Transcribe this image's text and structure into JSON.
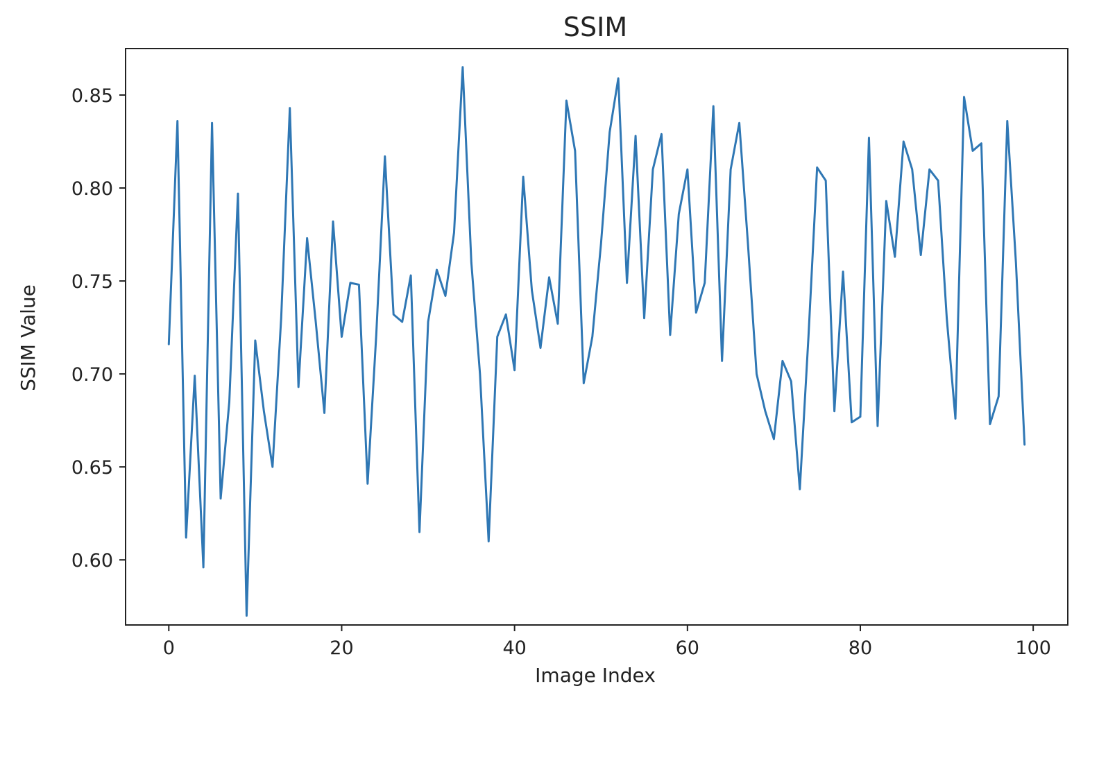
{
  "chart_data": {
    "type": "line",
    "title": "SSIM",
    "xlabel": "Image Index",
    "ylabel": "SSIM Value",
    "xlim": [
      -5,
      104
    ],
    "ylim": [
      0.565,
      0.875
    ],
    "x_ticks": [
      0,
      20,
      40,
      60,
      80,
      100
    ],
    "y_ticks": [
      0.6,
      0.65,
      0.7,
      0.75,
      0.8,
      0.85
    ],
    "x_tick_labels": [
      "0",
      "20",
      "40",
      "60",
      "80",
      "100"
    ],
    "y_tick_labels": [
      "0.60",
      "0.65",
      "0.70",
      "0.75",
      "0.80",
      "0.85"
    ],
    "grid": false,
    "color": "#2f77b4",
    "series": [
      {
        "x": [
          0,
          1,
          2,
          3,
          4,
          5,
          6,
          7,
          8,
          9,
          10,
          11,
          12,
          13,
          14,
          15,
          16,
          17,
          18,
          19,
          20,
          21,
          22,
          23,
          24,
          25,
          26,
          27,
          28,
          29,
          30,
          31,
          32,
          33,
          34,
          35,
          36,
          37,
          38,
          39,
          40,
          41,
          42,
          43,
          44,
          45,
          46,
          47,
          48,
          49,
          50,
          51,
          52,
          53,
          54,
          55,
          56,
          57,
          58,
          59,
          60,
          61,
          62,
          63,
          64,
          65,
          66,
          67,
          68,
          69,
          70,
          71,
          72,
          73,
          74,
          75,
          76,
          77,
          78,
          79,
          80,
          81,
          82,
          83,
          84,
          85,
          86,
          87,
          88,
          89,
          90,
          91,
          92,
          93,
          94,
          95,
          96,
          97,
          98,
          99
        ],
        "values": [
          0.716,
          0.836,
          0.612,
          0.699,
          0.596,
          0.835,
          0.633,
          0.685,
          0.797,
          0.57,
          0.718,
          0.68,
          0.65,
          0.73,
          0.843,
          0.693,
          0.773,
          0.728,
          0.679,
          0.782,
          0.72,
          0.749,
          0.748,
          0.641,
          0.721,
          0.817,
          0.732,
          0.728,
          0.753,
          0.615,
          0.728,
          0.756,
          0.742,
          0.776,
          0.865,
          0.76,
          0.7,
          0.61,
          0.72,
          0.732,
          0.702,
          0.806,
          0.745,
          0.714,
          0.752,
          0.727,
          0.847,
          0.82,
          0.695,
          0.72,
          0.77,
          0.83,
          0.859,
          0.749,
          0.828,
          0.73,
          0.81,
          0.829,
          0.721,
          0.786,
          0.81,
          0.733,
          0.749,
          0.844,
          0.707,
          0.81,
          0.835,
          0.77,
          0.7,
          0.68,
          0.665,
          0.707,
          0.696,
          0.638,
          0.72,
          0.811,
          0.804,
          0.68,
          0.755,
          0.674,
          0.677,
          0.827,
          0.672,
          0.793,
          0.763,
          0.825,
          0.81,
          0.764,
          0.81,
          0.804,
          0.73,
          0.676,
          0.849,
          0.82,
          0.824,
          0.673,
          0.688,
          0.836,
          0.76,
          0.662
        ]
      }
    ]
  }
}
